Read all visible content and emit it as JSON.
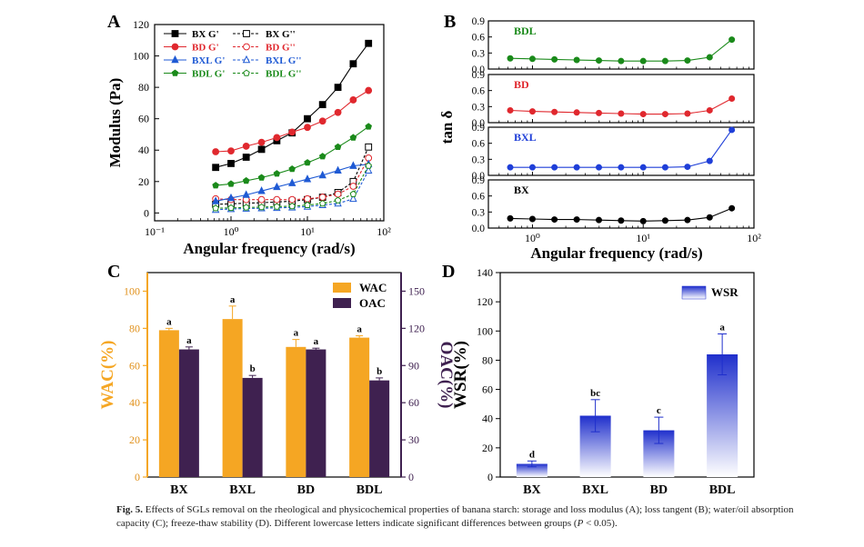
{
  "caption": {
    "label": "Fig. 5.",
    "text": "Effects of SGLs removal on the rheological and physicochemical properties of banana starch: storage and loss modulus (A); loss tangent (B); water/oil absorption capacity (C); freeze-thaw stability (D). Different lowercase letters indicate significant differences between groups (",
    "p": "P",
    "tail": " < 0.05)."
  },
  "chart_data": [
    {
      "panel": "A",
      "type": "line",
      "xscale": "log",
      "xlim": [
        0.1,
        100
      ],
      "ylim": [
        -5,
        120
      ],
      "xlabel": "Angular frequency (rad/s)",
      "ylabel": "Modulus (Pa)",
      "xticks": [
        "10⁻¹",
        "10⁰",
        "10¹",
        "10²"
      ],
      "yticks": [
        "0",
        "20",
        "40",
        "60",
        "80",
        "100",
        "120"
      ],
      "x": [
        0.63,
        1.0,
        1.58,
        2.51,
        3.98,
        6.31,
        10,
        15.8,
        25.1,
        39.8,
        63.1
      ],
      "series": [
        {
          "name": "BX G'",
          "color": "#000000",
          "marker": "square",
          "fill": true,
          "values": [
            29,
            31.5,
            35.5,
            40.5,
            46,
            51,
            60,
            69,
            80,
            95,
            108
          ]
        },
        {
          "name": "BX G''",
          "color": "#000000",
          "marker": "square",
          "fill": false,
          "dashed": true,
          "values": [
            5.5,
            5.8,
            6.2,
            6.5,
            7,
            7.5,
            8.5,
            10,
            13,
            20,
            42
          ]
        },
        {
          "name": "BD G'",
          "color": "#e0282e",
          "marker": "circle",
          "fill": true,
          "values": [
            39,
            39.5,
            42.5,
            45,
            48,
            51.5,
            54.5,
            58.5,
            64,
            72,
            78
          ]
        },
        {
          "name": "BD G''",
          "color": "#e0282e",
          "marker": "circle",
          "fill": false,
          "dashed": true,
          "values": [
            9,
            8.5,
            8.5,
            8.5,
            8.5,
            8.5,
            9,
            10,
            12,
            17,
            35
          ]
        },
        {
          "name": "BXL G'",
          "color": "#1f5ad4",
          "marker": "triangle",
          "fill": true,
          "values": [
            7.5,
            9.5,
            11.5,
            14,
            16.5,
            19,
            21.5,
            24,
            27,
            30,
            31
          ]
        },
        {
          "name": "BXL G''",
          "color": "#1f5ad4",
          "marker": "triangle",
          "fill": false,
          "dashed": true,
          "values": [
            2,
            2.5,
            2.8,
            3,
            3.2,
            3.5,
            4,
            5,
            6,
            9,
            27
          ]
        },
        {
          "name": "BDL G'",
          "color": "#1a8a1a",
          "marker": "pentagon",
          "fill": true,
          "values": [
            17.5,
            18.5,
            20.5,
            22.5,
            25,
            28,
            32,
            36,
            42,
            48,
            55
          ]
        },
        {
          "name": "BDL G''",
          "color": "#1a8a1a",
          "marker": "pentagon",
          "fill": false,
          "dashed": true,
          "values": [
            3,
            3.2,
            3.5,
            3.7,
            4,
            4.3,
            5,
            6,
            8,
            12,
            30
          ]
        }
      ]
    },
    {
      "panel": "B",
      "type": "line",
      "xscale": "log",
      "xlim": [
        0.4,
        100
      ],
      "ylim": [
        0,
        0.9
      ],
      "xlabel": "Angular frequency (rad/s)",
      "ylabel": "tan δ",
      "xticks": [
        "10⁰",
        "10¹",
        "10²"
      ],
      "yticks": [
        "0.0",
        "0.3",
        "0.6",
        "0.9"
      ],
      "x": [
        0.63,
        1.0,
        1.58,
        2.51,
        3.98,
        6.31,
        10,
        15.8,
        25.1,
        39.8,
        63.1
      ],
      "series": [
        {
          "name": "BDL",
          "color": "#1a8a1a",
          "values": [
            0.2,
            0.19,
            0.18,
            0.17,
            0.16,
            0.15,
            0.15,
            0.15,
            0.16,
            0.22,
            0.55
          ]
        },
        {
          "name": "BD",
          "color": "#e0282e",
          "values": [
            0.23,
            0.21,
            0.2,
            0.19,
            0.18,
            0.17,
            0.16,
            0.16,
            0.17,
            0.23,
            0.45
          ]
        },
        {
          "name": "BXL",
          "color": "#1f3fd8",
          "values": [
            0.15,
            0.15,
            0.15,
            0.15,
            0.15,
            0.15,
            0.15,
            0.15,
            0.16,
            0.27,
            0.85
          ]
        },
        {
          "name": "BX",
          "color": "#000000",
          "values": [
            0.18,
            0.17,
            0.16,
            0.16,
            0.15,
            0.14,
            0.13,
            0.14,
            0.15,
            0.2,
            0.37
          ]
        }
      ]
    },
    {
      "panel": "C",
      "type": "bar",
      "categories": [
        "BX",
        "BXL",
        "BD",
        "BDL"
      ],
      "ylabel_left": "WAC(%)",
      "ylabel_right": "OAC(%)",
      "ylim_left": [
        0,
        110
      ],
      "ylim_right": [
        0,
        165
      ],
      "yticks_left": [
        "0",
        "20",
        "40",
        "60",
        "80",
        "100"
      ],
      "yticks_right": [
        "0",
        "30",
        "60",
        "90",
        "120",
        "150"
      ],
      "series": [
        {
          "name": "WAC",
          "axis": "left",
          "color": "#f5a623",
          "values": [
            79,
            85,
            70,
            75
          ],
          "errors": [
            1,
            7,
            4,
            1
          ],
          "letters": [
            "a",
            "a",
            "a",
            "a"
          ]
        },
        {
          "name": "OAC",
          "axis": "right",
          "color": "#3f2150",
          "values": [
            103,
            80,
            103,
            78
          ],
          "errors": [
            2,
            2,
            1,
            2
          ],
          "letters": [
            "a",
            "b",
            "a",
            "b"
          ]
        }
      ]
    },
    {
      "panel": "D",
      "type": "bar",
      "categories": [
        "BX",
        "BXL",
        "BD",
        "BDL"
      ],
      "ylabel": "WSR(%)",
      "ylim": [
        0,
        140
      ],
      "yticks": [
        "0",
        "20",
        "40",
        "60",
        "80",
        "100",
        "120",
        "140"
      ],
      "series": [
        {
          "name": "WSR",
          "color": "#1f2fcc",
          "values": [
            9,
            42,
            32,
            84
          ],
          "errors": [
            2,
            11,
            9,
            14
          ],
          "letters": [
            "d",
            "bc",
            "c",
            "a"
          ]
        }
      ]
    }
  ]
}
